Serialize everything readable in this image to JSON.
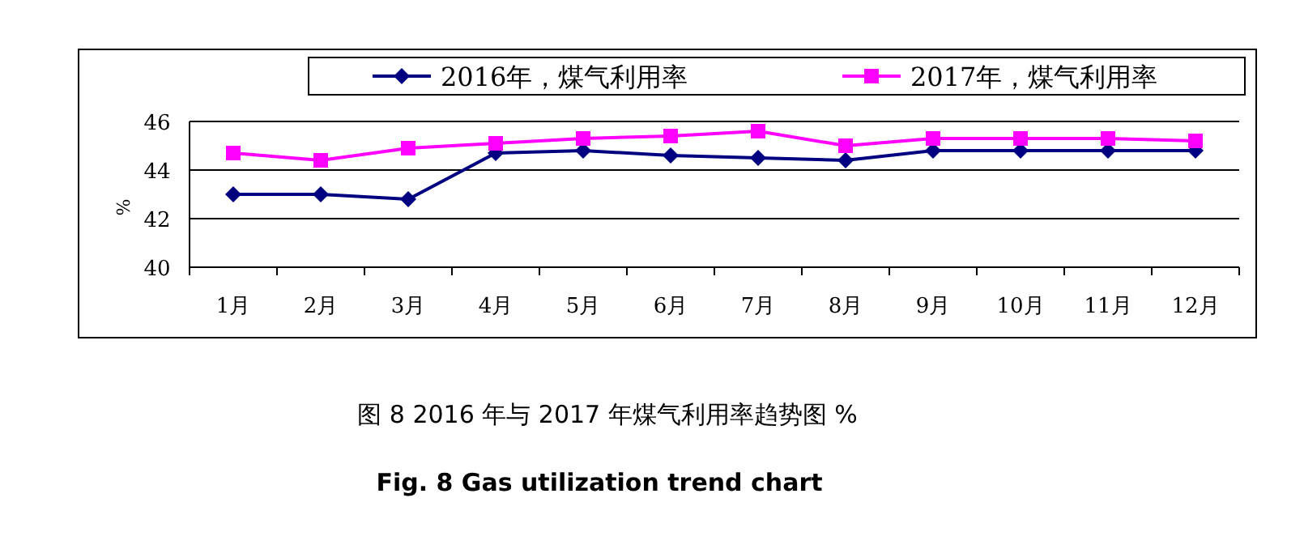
{
  "chart_data": {
    "type": "line",
    "title": "图 8 2016 年与 2017 年煤气利用率趋势图 %",
    "subtitle": "Fig. 8  Gas utilization trend chart",
    "ylabel": "%",
    "categories": [
      "1月",
      "2月",
      "3月",
      "4月",
      "5月",
      "6月",
      "7月",
      "8月",
      "9月",
      "10月",
      "11月",
      "12月"
    ],
    "series": [
      {
        "name": "2016年，煤气利用率",
        "color": "#000080",
        "marker": "diamond",
        "values": [
          43.0,
          43.0,
          42.8,
          44.7,
          44.8,
          44.6,
          44.5,
          44.4,
          44.8,
          44.8,
          44.8,
          44.8
        ]
      },
      {
        "name": "2017年，煤气利用率",
        "color": "#ff00ff",
        "marker": "square",
        "values": [
          44.7,
          44.4,
          44.9,
          45.1,
          45.3,
          45.4,
          45.6,
          45.0,
          45.3,
          45.3,
          45.3,
          45.2
        ]
      }
    ],
    "ylim": [
      40,
      46
    ],
    "yticks": [
      40,
      42,
      44,
      46
    ],
    "grid": "y",
    "legend": "top",
    "line_style": "solid"
  }
}
